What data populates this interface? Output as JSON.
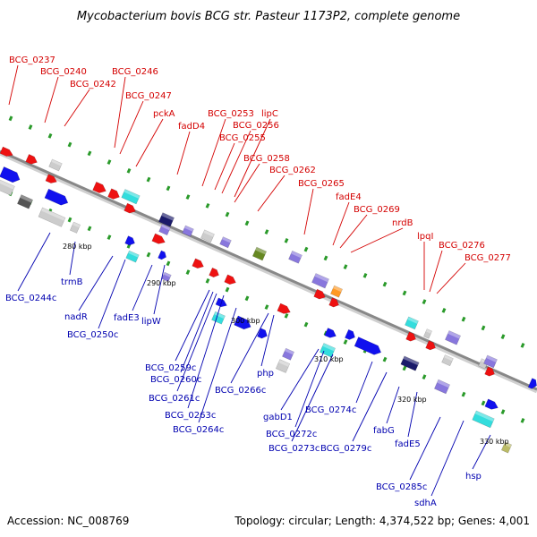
{
  "title": "Mycobacterium bovis BCG str. Pasteur 1173P2, complete genome",
  "footer": {
    "accession": "Accession: NC_008769",
    "summary": "Topology: circular; Length: 4,374,522 bp; Genes: 4,001"
  },
  "scale_ticks": [
    "280 kbp",
    "290 kbp",
    "300 kbp",
    "310 kbp",
    "320 kbp",
    "330 kbp"
  ],
  "forward_labels": [
    "BCG_0237",
    "BCG_0240",
    "BCG_0242",
    "BCG_0246",
    "BCG_0247",
    "pckA",
    "fadD4",
    "BCG_0253",
    "lipC",
    "BCG_0256",
    "BCG_0255",
    "BCG_0258",
    "BCG_0262",
    "BCG_0265",
    "fadE4",
    "BCG_0269",
    "nrdB",
    "lpqI",
    "BCG_0276",
    "BCG_0277"
  ],
  "reverse_labels": [
    "BCG_0244c",
    "trmB",
    "nadR",
    "BCG_0250c",
    "fadE3",
    "lipW",
    "BCG_0259c",
    "BCG_0260c",
    "BCG_0261c",
    "BCG_0263c",
    "BCG_0264c",
    "BCG_0266c",
    "php",
    "gabD1",
    "BCG_0272c",
    "BCG_0273c",
    "BCG_0274c",
    "BCG_0279c",
    "fabG",
    "fadE5",
    "BCG_0285c",
    "sdhA",
    "hsp"
  ],
  "colors": {
    "forward": "#ee1111",
    "reverse": "#1111ee",
    "backbone": "#888888",
    "forward_label": "#d40000",
    "reverse_label": "#0000b0"
  }
}
